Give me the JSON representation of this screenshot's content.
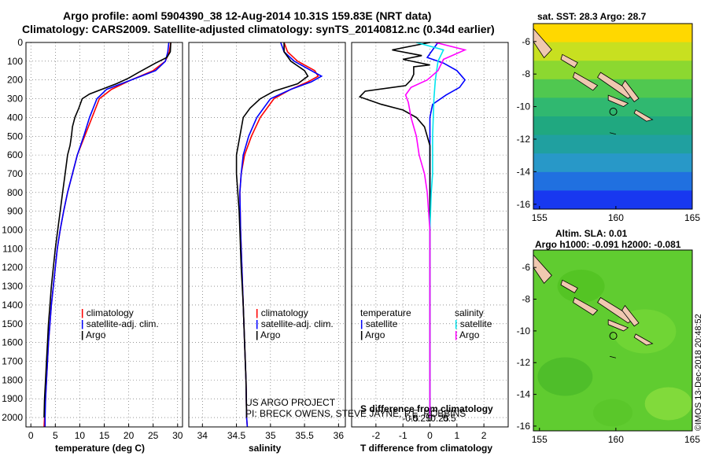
{
  "header": {
    "line1": "Argo profile: aoml 5904390_38 12-Aug-2014 10.31S 159.83E (NRT data)",
    "line2": "Climatology: CARS2009. Satellite-adjusted climatology: synTS_20140812.nc (0.34d earlier)"
  },
  "colors": {
    "climatology": "#ff0000",
    "satellite": "#0000ff",
    "argo": "#000000",
    "sal_sat": "#00e5ee",
    "sal_argo": "#ff00ff",
    "land": "#f0c8b0"
  },
  "depth_axis": {
    "min": 0,
    "max": 2050,
    "ticks": [
      0,
      100,
      200,
      300,
      400,
      500,
      600,
      700,
      800,
      900,
      1000,
      1100,
      1200,
      1300,
      1400,
      1500,
      1600,
      1700,
      1800,
      1900,
      2000
    ]
  },
  "chart_data": [
    {
      "type": "line",
      "name": "temperature",
      "xlabel": "temperature (deg C)",
      "xlim": [
        -1,
        31
      ],
      "xticks": [
        0,
        5,
        10,
        15,
        20,
        25,
        30
      ],
      "legend": [
        "climatology",
        "satellite-adj. clim.",
        "Argo"
      ],
      "series": [
        {
          "name": "climatology",
          "color": "#ff0000",
          "points": [
            [
              28.6,
              0
            ],
            [
              28.3,
              50
            ],
            [
              27.5,
              100
            ],
            [
              25,
              150
            ],
            [
              20.5,
              200
            ],
            [
              16.5,
              250
            ],
            [
              14,
              300
            ],
            [
              12.5,
              400
            ],
            [
              11,
              500
            ],
            [
              9.5,
              600
            ],
            [
              8.5,
              700
            ],
            [
              7.5,
              800
            ],
            [
              6.7,
              900
            ],
            [
              6,
              1000
            ],
            [
              5.4,
              1100
            ],
            [
              5,
              1200
            ],
            [
              4.6,
              1300
            ],
            [
              4.2,
              1400
            ],
            [
              3.9,
              1500
            ],
            [
              3.6,
              1600
            ],
            [
              3.4,
              1700
            ],
            [
              3.2,
              1800
            ],
            [
              3,
              1900
            ],
            [
              2.8,
              2000
            ],
            [
              2.7,
              2050
            ]
          ]
        },
        {
          "name": "satellite-adj. clim.",
          "color": "#0000ff",
          "points": [
            [
              28.2,
              0
            ],
            [
              28,
              50
            ],
            [
              27.5,
              100
            ],
            [
              25.5,
              150
            ],
            [
              20.5,
              200
            ],
            [
              15.5,
              250
            ],
            [
              13.5,
              300
            ],
            [
              12,
              400
            ],
            [
              10.8,
              500
            ],
            [
              9.5,
              600
            ],
            [
              8.5,
              700
            ],
            [
              7.5,
              800
            ],
            [
              6.7,
              900
            ],
            [
              6,
              1000
            ],
            [
              5.4,
              1100
            ],
            [
              5,
              1200
            ],
            [
              4.6,
              1300
            ],
            [
              4.2,
              1400
            ],
            [
              3.9,
              1500
            ],
            [
              3.6,
              1600
            ],
            [
              3.4,
              1700
            ],
            [
              3.2,
              1800
            ],
            [
              3,
              1900
            ],
            [
              2.9,
              2000
            ],
            [
              2.9,
              2050
            ]
          ]
        },
        {
          "name": "Argo",
          "color": "#000000",
          "points": [
            [
              28.6,
              0
            ],
            [
              28.5,
              50
            ],
            [
              27.8,
              80
            ],
            [
              25.5,
              110
            ],
            [
              22,
              160
            ],
            [
              20,
              190
            ],
            [
              17.5,
              220
            ],
            [
              14.5,
              250
            ],
            [
              12,
              275
            ],
            [
              10.5,
              300
            ],
            [
              9.8,
              350
            ],
            [
              9,
              400
            ],
            [
              8.5,
              450
            ],
            [
              8.3,
              500
            ],
            [
              8,
              550
            ],
            [
              7.5,
              600
            ],
            [
              7,
              700
            ],
            [
              6.5,
              800
            ],
            [
              6,
              900
            ],
            [
              5.5,
              1000
            ],
            [
              5,
              1100
            ],
            [
              4.6,
              1200
            ],
            [
              4.2,
              1300
            ],
            [
              3.9,
              1400
            ],
            [
              3.6,
              1500
            ],
            [
              3.4,
              1600
            ],
            [
              3.2,
              1700
            ],
            [
              3,
              1800
            ],
            [
              2.8,
              1900
            ],
            [
              2.7,
              2000
            ]
          ]
        }
      ]
    },
    {
      "type": "line",
      "name": "salinity",
      "xlabel": "salinity",
      "xlim": [
        33.8,
        36.1
      ],
      "xticks": [
        34,
        34.5,
        35,
        35.5,
        36
      ],
      "xtick_labels": [
        "34",
        "34.5",
        "35",
        "35.5",
        "36"
      ],
      "legend": [
        "climatology",
        "satellite-adj. clim.",
        "Argo"
      ],
      "series": [
        {
          "name": "climatology",
          "color": "#ff0000",
          "points": [
            [
              35.2,
              0
            ],
            [
              35.25,
              50
            ],
            [
              35.4,
              100
            ],
            [
              35.65,
              150
            ],
            [
              35.7,
              180
            ],
            [
              35.55,
              210
            ],
            [
              35.3,
              250
            ],
            [
              35.05,
              300
            ],
            [
              34.85,
              400
            ],
            [
              34.72,
              500
            ],
            [
              34.62,
              600
            ],
            [
              34.57,
              700
            ],
            [
              34.55,
              800
            ],
            [
              34.56,
              1000
            ],
            [
              34.58,
              1200
            ],
            [
              34.6,
              1400
            ],
            [
              34.62,
              1600
            ],
            [
              34.64,
              1800
            ],
            [
              34.65,
              2000
            ],
            [
              34.66,
              2050
            ]
          ]
        },
        {
          "name": "satellite-adj. clim.",
          "color": "#0000ff",
          "points": [
            [
              35.15,
              0
            ],
            [
              35.2,
              50
            ],
            [
              35.35,
              100
            ],
            [
              35.6,
              150
            ],
            [
              35.75,
              180
            ],
            [
              35.6,
              210
            ],
            [
              35.3,
              250
            ],
            [
              35,
              300
            ],
            [
              34.8,
              400
            ],
            [
              34.68,
              500
            ],
            [
              34.6,
              600
            ],
            [
              34.57,
              700
            ],
            [
              34.55,
              800
            ],
            [
              34.56,
              1000
            ],
            [
              34.58,
              1200
            ],
            [
              34.6,
              1400
            ],
            [
              34.62,
              1600
            ],
            [
              34.64,
              1800
            ],
            [
              34.65,
              2000
            ],
            [
              34.66,
              2050
            ]
          ]
        },
        {
          "name": "Argo",
          "color": "#000000",
          "points": [
            [
              35.2,
              0
            ],
            [
              35.2,
              50
            ],
            [
              35.3,
              100
            ],
            [
              35.5,
              150
            ],
            [
              35.55,
              180
            ],
            [
              35.4,
              220
            ],
            [
              35.05,
              260
            ],
            [
              34.85,
              300
            ],
            [
              34.7,
              350
            ],
            [
              34.6,
              400
            ],
            [
              34.55,
              500
            ],
            [
              34.5,
              600
            ],
            [
              34.5,
              700
            ],
            [
              34.52,
              800
            ],
            [
              34.54,
              900
            ],
            [
              34.55,
              1000
            ],
            [
              34.57,
              1200
            ],
            [
              34.6,
              1400
            ],
            [
              34.62,
              1600
            ],
            [
              34.64,
              1800
            ],
            [
              34.65,
              2000
            ]
          ]
        }
      ]
    },
    {
      "type": "line",
      "name": "difference",
      "xlabel": "T difference from climatology",
      "xlim": [
        -2.9,
        2.9
      ],
      "xticks": [
        -2,
        -1,
        0,
        1,
        2
      ],
      "top_label": "S difference from climatology",
      "top_xticks": [
        -0.5,
        -0.25,
        0,
        0.25,
        0.5
      ],
      "top_xtick_labels": [
        "-0.5",
        "-0.25",
        "0",
        "0.25",
        "0.5"
      ],
      "legend_left_title": "temperature",
      "legend_right_title": "salinity",
      "legend": [
        "satellite",
        "Argo"
      ],
      "series": [
        {
          "name": "temperature satellite",
          "color": "#0000ff",
          "points": [
            [
              0.3,
              0
            ],
            [
              0.1,
              40
            ],
            [
              -0.1,
              80
            ],
            [
              0.5,
              110
            ],
            [
              1,
              150
            ],
            [
              1.3,
              200
            ],
            [
              1.1,
              240
            ],
            [
              0.6,
              280
            ],
            [
              0.1,
              330
            ],
            [
              0,
              400
            ],
            [
              0,
              800
            ],
            [
              0,
              1200
            ],
            [
              0,
              2000
            ]
          ]
        },
        {
          "name": "temperature Argo",
          "color": "#000000",
          "points": [
            [
              0,
              0
            ],
            [
              -1.4,
              40
            ],
            [
              -0.3,
              70
            ],
            [
              -1,
              90
            ],
            [
              0,
              120
            ],
            [
              -0.6,
              130
            ],
            [
              -0.6,
              170
            ],
            [
              -0.7,
              200
            ],
            [
              -0.9,
              230
            ],
            [
              -2.4,
              260
            ],
            [
              -2.6,
              290
            ],
            [
              -1.8,
              330
            ],
            [
              -1,
              360
            ],
            [
              -0.5,
              400
            ],
            [
              -0.2,
              450
            ],
            [
              0,
              550
            ],
            [
              0,
              800
            ],
            [
              0,
              1200
            ],
            [
              0,
              2000
            ]
          ]
        },
        {
          "name": "salinity satellite",
          "color": "#00e5ee",
          "points": [
            [
              -0.5,
              0
            ],
            [
              0.5,
              40
            ],
            [
              0.3,
              100
            ],
            [
              0.2,
              200
            ],
            [
              0.15,
              300
            ],
            [
              0.1,
              500
            ],
            [
              0.1,
              700
            ],
            [
              0.05,
              800
            ],
            [
              0,
              1000
            ],
            [
              0,
              1400
            ],
            [
              0,
              2000
            ]
          ]
        },
        {
          "name": "salinity Argo",
          "color": "#ff00ff",
          "points": [
            [
              0.2,
              0
            ],
            [
              1.3,
              40
            ],
            [
              0.5,
              90
            ],
            [
              0.3,
              150
            ],
            [
              -0.1,
              200
            ],
            [
              -0.7,
              240
            ],
            [
              -0.9,
              280
            ],
            [
              -0.8,
              320
            ],
            [
              -0.7,
              400
            ],
            [
              -0.5,
              500
            ],
            [
              -0.4,
              600
            ],
            [
              -0.2,
              700
            ],
            [
              -0.1,
              800
            ],
            [
              -0.05,
              900
            ],
            [
              0,
              1000
            ],
            [
              0,
              1400
            ],
            [
              0,
              2000
            ]
          ]
        }
      ]
    }
  ],
  "maps": {
    "top": {
      "title": "sat. SST: 28.3 Argo: 28.7",
      "yticks": [
        -6,
        -8,
        -10,
        -12,
        -14,
        -16
      ],
      "xticks": [
        155,
        160,
        165
      ]
    },
    "bottom": {
      "title1": "Altim. SLA: 0.01",
      "title2": "Argo h1000: -0.091 h2000: -0.081",
      "yticks": [
        -6,
        -8,
        -10,
        -12,
        -14,
        -16
      ],
      "xticks": [
        155,
        160,
        165
      ]
    },
    "float_position": {
      "lon": 159.83,
      "lat": -10.31
    }
  },
  "credits": {
    "line1": "US ARGO PROJECT",
    "line2": "PI: BRECK OWENS, STEVE JAYNE, P.E. ROBBINS",
    "stamp": "©IMOS 13-Dec-2018 20:48:52"
  }
}
